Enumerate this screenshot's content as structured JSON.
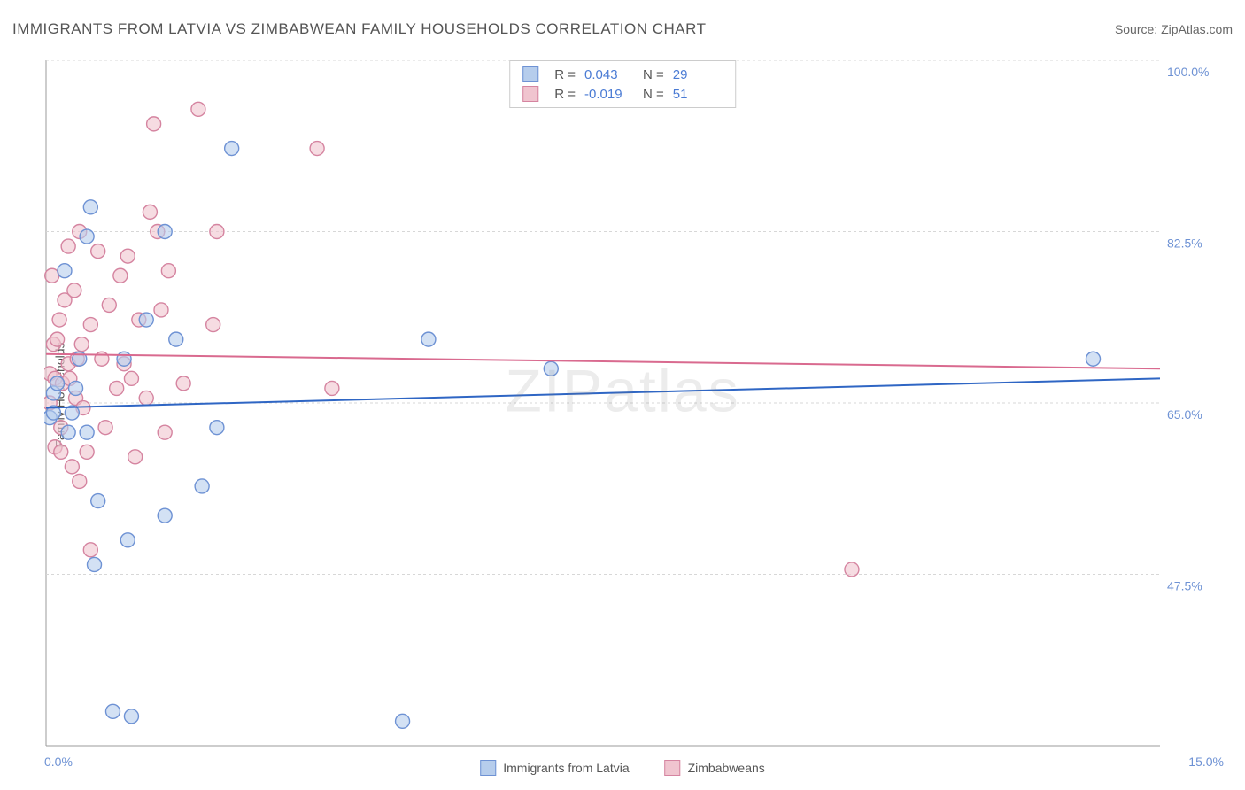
{
  "header": {
    "title": "IMMIGRANTS FROM LATVIA VS ZIMBABWEAN FAMILY HOUSEHOLDS CORRELATION CHART",
    "source": "Source: ZipAtlas.com"
  },
  "watermark": "ZIPatlas",
  "chart": {
    "type": "scatter",
    "ylabel": "Family Households",
    "xlim": [
      0,
      15
    ],
    "ylim": [
      30,
      100
    ],
    "x_ticks": [
      {
        "v": 0,
        "label": "0.0%"
      },
      {
        "v": 15,
        "label": "15.0%"
      }
    ],
    "y_ticks": [
      {
        "v": 47.5,
        "label": "47.5%"
      },
      {
        "v": 65.0,
        "label": "65.0%"
      },
      {
        "v": 82.5,
        "label": "82.5%"
      },
      {
        "v": 100.0,
        "label": "100.0%"
      }
    ],
    "background_color": "#ffffff",
    "grid_color": "#d7d7d7",
    "axis_color": "#9b9b9b",
    "tick_label_color": "#6e92d4",
    "marker_radius": 8,
    "marker_stroke_width": 1.4,
    "line_width": 2,
    "series": [
      {
        "name": "Immigrants from Latvia",
        "color_fill": "#b6cdec",
        "color_stroke": "#6e92d4",
        "line_color": "#2f66c4",
        "R": "0.043",
        "N": "29",
        "trend": {
          "x1": 0,
          "y1": 64.5,
          "x2": 15,
          "y2": 67.5
        },
        "points": [
          [
            0.05,
            63.5
          ],
          [
            0.1,
            66.0
          ],
          [
            0.1,
            64.0
          ],
          [
            0.15,
            67.0
          ],
          [
            0.25,
            78.5
          ],
          [
            0.3,
            62.0
          ],
          [
            0.35,
            64.0
          ],
          [
            0.4,
            66.5
          ],
          [
            0.45,
            69.5
          ],
          [
            0.55,
            82.0
          ],
          [
            0.55,
            62.0
          ],
          [
            0.6,
            85.0
          ],
          [
            0.65,
            48.5
          ],
          [
            0.7,
            55.0
          ],
          [
            0.9,
            33.5
          ],
          [
            1.05,
            69.5
          ],
          [
            1.1,
            51.0
          ],
          [
            1.15,
            33.0
          ],
          [
            1.35,
            73.5
          ],
          [
            1.6,
            82.5
          ],
          [
            1.6,
            53.5
          ],
          [
            1.75,
            71.5
          ],
          [
            2.1,
            56.5
          ],
          [
            2.3,
            62.5
          ],
          [
            2.5,
            91.0
          ],
          [
            4.8,
            32.5
          ],
          [
            5.15,
            71.5
          ],
          [
            6.8,
            68.5
          ],
          [
            14.1,
            69.5
          ]
        ]
      },
      {
        "name": "Zimbabweans",
        "color_fill": "#f0c4cf",
        "color_stroke": "#d584a0",
        "line_color": "#d96a8f",
        "R": "-0.019",
        "N": "51",
        "trend": {
          "x1": 0,
          "y1": 70.0,
          "x2": 15,
          "y2": 68.5
        },
        "points": [
          [
            0.05,
            65.0
          ],
          [
            0.05,
            68.0
          ],
          [
            0.08,
            78.0
          ],
          [
            0.1,
            71.0
          ],
          [
            0.12,
            60.5
          ],
          [
            0.12,
            67.5
          ],
          [
            0.15,
            71.5
          ],
          [
            0.18,
            73.5
          ],
          [
            0.2,
            60.0
          ],
          [
            0.2,
            62.5
          ],
          [
            0.22,
            67.0
          ],
          [
            0.25,
            75.5
          ],
          [
            0.3,
            69.0
          ],
          [
            0.3,
            81.0
          ],
          [
            0.32,
            67.5
          ],
          [
            0.35,
            58.5
          ],
          [
            0.38,
            76.5
          ],
          [
            0.4,
            65.5
          ],
          [
            0.42,
            69.5
          ],
          [
            0.45,
            82.5
          ],
          [
            0.45,
            57.0
          ],
          [
            0.48,
            71.0
          ],
          [
            0.5,
            64.5
          ],
          [
            0.55,
            60.0
          ],
          [
            0.6,
            73.0
          ],
          [
            0.6,
            50.0
          ],
          [
            0.7,
            80.5
          ],
          [
            0.75,
            69.5
          ],
          [
            0.8,
            62.5
          ],
          [
            0.85,
            75.0
          ],
          [
            0.95,
            66.5
          ],
          [
            1.0,
            78.0
          ],
          [
            1.05,
            69.0
          ],
          [
            1.1,
            80.0
          ],
          [
            1.15,
            67.5
          ],
          [
            1.2,
            59.5
          ],
          [
            1.25,
            73.5
          ],
          [
            1.35,
            65.5
          ],
          [
            1.4,
            84.5
          ],
          [
            1.45,
            93.5
          ],
          [
            1.5,
            82.5
          ],
          [
            1.55,
            74.5
          ],
          [
            1.6,
            62.0
          ],
          [
            1.65,
            78.5
          ],
          [
            1.85,
            67.0
          ],
          [
            2.05,
            95.0
          ],
          [
            2.25,
            73.0
          ],
          [
            2.3,
            82.5
          ],
          [
            3.65,
            91.0
          ],
          [
            3.85,
            66.5
          ],
          [
            10.85,
            48.0
          ]
        ]
      }
    ]
  },
  "legend": {
    "series1_label": "Immigrants from Latvia",
    "series2_label": "Zimbabweans"
  }
}
